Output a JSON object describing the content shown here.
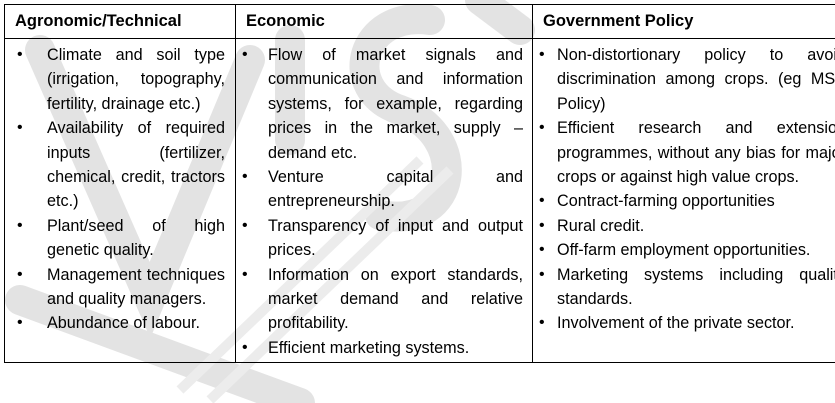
{
  "table": {
    "headers": [
      "Agronomic/Technical",
      "Economic",
      "Government Policy"
    ],
    "columns": [
      {
        "items": [
          "Climate and soil type (irrigation, topography, fertility, drainage etc.)",
          "Availability of required inputs (fertilizer, chemical, credit, tractors etc.)",
          "Plant/seed of high genetic quality.",
          "Management techniques and quality managers.",
          "Abundance of labour."
        ]
      },
      {
        "items": [
          "Flow of market signals and communication and information systems, for example, regarding prices in the market, supply –demand etc.",
          "Venture capital and entrepreneurship.",
          "Transparency of input and output prices.",
          "Information on export standards, market demand and relative profitability.",
          "Efficient marketing systems."
        ]
      },
      {
        "items": [
          "Non-distortionary policy to avoid discrimination among crops. (eg MSP Policy)",
          "Efficient research and extension programmes, without any bias for major crops or against high value crops.",
          "Contract-farming opportunities",
          "Rural credit.",
          "Off-farm employment opportunities.",
          "Marketing systems including quality standards.",
          "Involvement of the private sector."
        ]
      }
    ]
  },
  "icons": {
    "bullet": "•"
  },
  "watermark": {
    "text": "VISION IAS",
    "color": "#cfcfcf"
  }
}
